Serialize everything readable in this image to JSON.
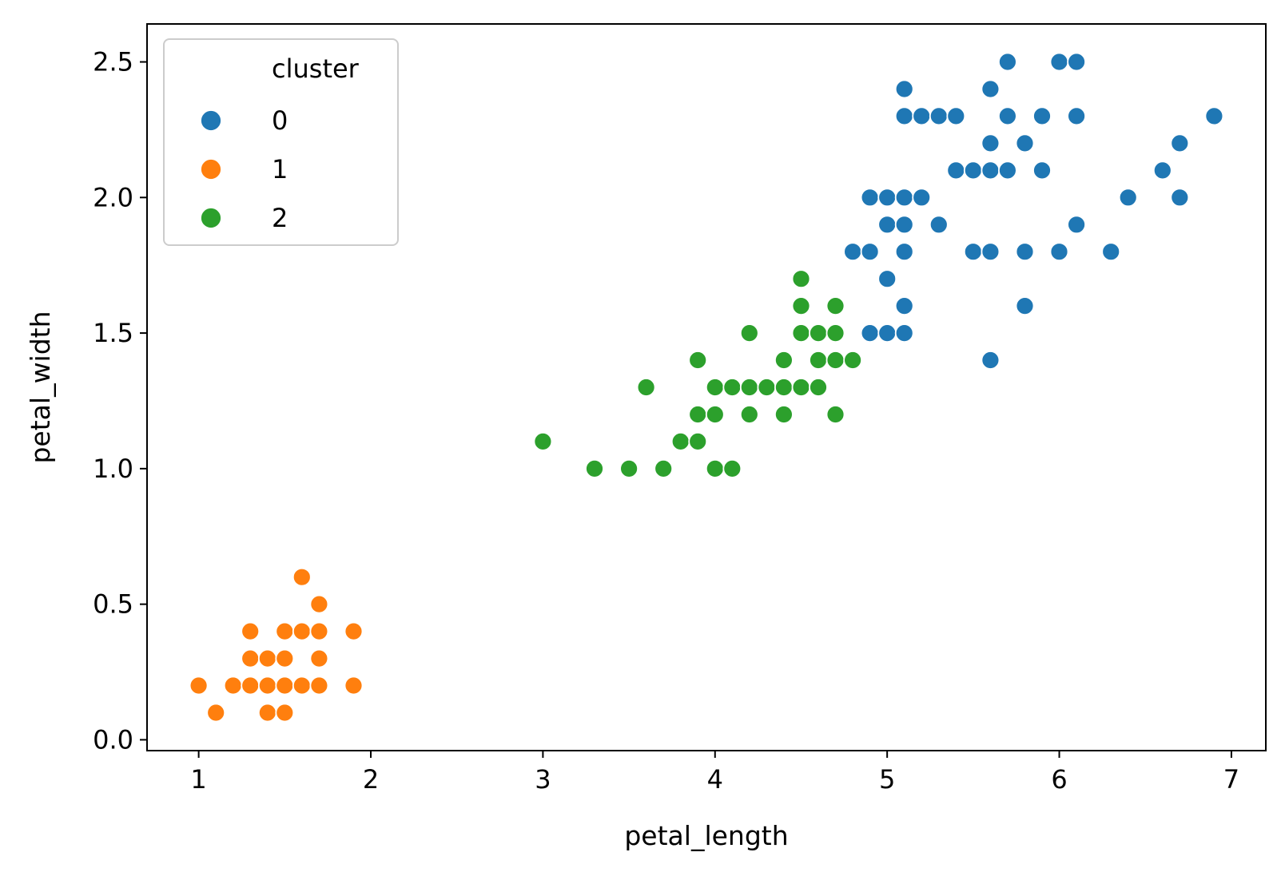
{
  "chart_data": {
    "type": "scatter",
    "xlabel": "petal_length",
    "ylabel": "petal_width",
    "xlim": [
      0.7,
      7.2
    ],
    "ylim": [
      -0.04,
      2.64
    ],
    "xticks": [
      {
        "value": 1,
        "label": "1"
      },
      {
        "value": 2,
        "label": "2"
      },
      {
        "value": 3,
        "label": "3"
      },
      {
        "value": 4,
        "label": "4"
      },
      {
        "value": 5,
        "label": "5"
      },
      {
        "value": 6,
        "label": "6"
      },
      {
        "value": 7,
        "label": "7"
      }
    ],
    "yticks": [
      {
        "value": 0.0,
        "label": "0.0"
      },
      {
        "value": 0.5,
        "label": "0.5"
      },
      {
        "value": 1.0,
        "label": "1.0"
      },
      {
        "value": 1.5,
        "label": "1.5"
      },
      {
        "value": 2.0,
        "label": "2.0"
      },
      {
        "value": 2.5,
        "label": "2.5"
      }
    ],
    "grid": false,
    "legend": {
      "title": "cluster",
      "position": "top-left",
      "entries": [
        "0",
        "1",
        "2"
      ]
    },
    "series": [
      {
        "name": "0",
        "color": "#1f77b4",
        "points": [
          [
            5.7,
            2.5
          ],
          [
            6.0,
            2.5
          ],
          [
            6.1,
            2.5
          ],
          [
            5.1,
            2.4
          ],
          [
            5.6,
            2.4
          ],
          [
            5.1,
            2.3
          ],
          [
            5.2,
            2.3
          ],
          [
            5.3,
            2.3
          ],
          [
            5.4,
            2.3
          ],
          [
            5.7,
            2.3
          ],
          [
            5.9,
            2.3
          ],
          [
            6.1,
            2.3
          ],
          [
            6.9,
            2.3
          ],
          [
            5.6,
            2.2
          ],
          [
            5.8,
            2.2
          ],
          [
            6.7,
            2.2
          ],
          [
            5.4,
            2.1
          ],
          [
            5.5,
            2.1
          ],
          [
            5.6,
            2.1
          ],
          [
            5.7,
            2.1
          ],
          [
            5.9,
            2.1
          ],
          [
            6.6,
            2.1
          ],
          [
            4.9,
            2.0
          ],
          [
            5.0,
            2.0
          ],
          [
            5.1,
            2.0
          ],
          [
            5.2,
            2.0
          ],
          [
            6.4,
            2.0
          ],
          [
            6.7,
            2.0
          ],
          [
            5.0,
            1.9
          ],
          [
            5.1,
            1.9
          ],
          [
            5.3,
            1.9
          ],
          [
            6.1,
            1.9
          ],
          [
            4.8,
            1.8
          ],
          [
            4.9,
            1.8
          ],
          [
            5.1,
            1.8
          ],
          [
            5.5,
            1.8
          ],
          [
            5.6,
            1.8
          ],
          [
            5.8,
            1.8
          ],
          [
            6.0,
            1.8
          ],
          [
            6.3,
            1.8
          ],
          [
            5.0,
            1.7
          ],
          [
            5.1,
            1.6
          ],
          [
            5.8,
            1.6
          ],
          [
            4.9,
            1.5
          ],
          [
            5.0,
            1.5
          ],
          [
            5.1,
            1.5
          ],
          [
            5.6,
            1.4
          ]
        ]
      },
      {
        "name": "1",
        "color": "#ff7f0e",
        "points": [
          [
            1.6,
            0.6
          ],
          [
            1.7,
            0.5
          ],
          [
            1.3,
            0.4
          ],
          [
            1.5,
            0.4
          ],
          [
            1.6,
            0.4
          ],
          [
            1.7,
            0.4
          ],
          [
            1.9,
            0.4
          ],
          [
            1.3,
            0.3
          ],
          [
            1.4,
            0.3
          ],
          [
            1.5,
            0.3
          ],
          [
            1.7,
            0.3
          ],
          [
            1.0,
            0.2
          ],
          [
            1.2,
            0.2
          ],
          [
            1.3,
            0.2
          ],
          [
            1.4,
            0.2
          ],
          [
            1.5,
            0.2
          ],
          [
            1.6,
            0.2
          ],
          [
            1.7,
            0.2
          ],
          [
            1.9,
            0.2
          ],
          [
            1.1,
            0.1
          ],
          [
            1.4,
            0.1
          ],
          [
            1.5,
            0.1
          ]
        ]
      },
      {
        "name": "2",
        "color": "#2ca02c",
        "points": [
          [
            4.5,
            1.7
          ],
          [
            4.5,
            1.6
          ],
          [
            4.7,
            1.6
          ],
          [
            4.2,
            1.5
          ],
          [
            4.5,
            1.5
          ],
          [
            4.6,
            1.5
          ],
          [
            4.7,
            1.5
          ],
          [
            3.9,
            1.4
          ],
          [
            4.4,
            1.4
          ],
          [
            4.6,
            1.4
          ],
          [
            4.7,
            1.4
          ],
          [
            4.8,
            1.4
          ],
          [
            3.6,
            1.3
          ],
          [
            4.0,
            1.3
          ],
          [
            4.1,
            1.3
          ],
          [
            4.2,
            1.3
          ],
          [
            4.3,
            1.3
          ],
          [
            4.4,
            1.3
          ],
          [
            4.5,
            1.3
          ],
          [
            4.6,
            1.3
          ],
          [
            3.9,
            1.2
          ],
          [
            4.0,
            1.2
          ],
          [
            4.2,
            1.2
          ],
          [
            4.4,
            1.2
          ],
          [
            4.7,
            1.2
          ],
          [
            3.0,
            1.1
          ],
          [
            3.8,
            1.1
          ],
          [
            3.9,
            1.1
          ],
          [
            3.3,
            1.0
          ],
          [
            3.5,
            1.0
          ],
          [
            3.7,
            1.0
          ],
          [
            4.0,
            1.0
          ],
          [
            4.1,
            1.0
          ]
        ]
      }
    ]
  }
}
